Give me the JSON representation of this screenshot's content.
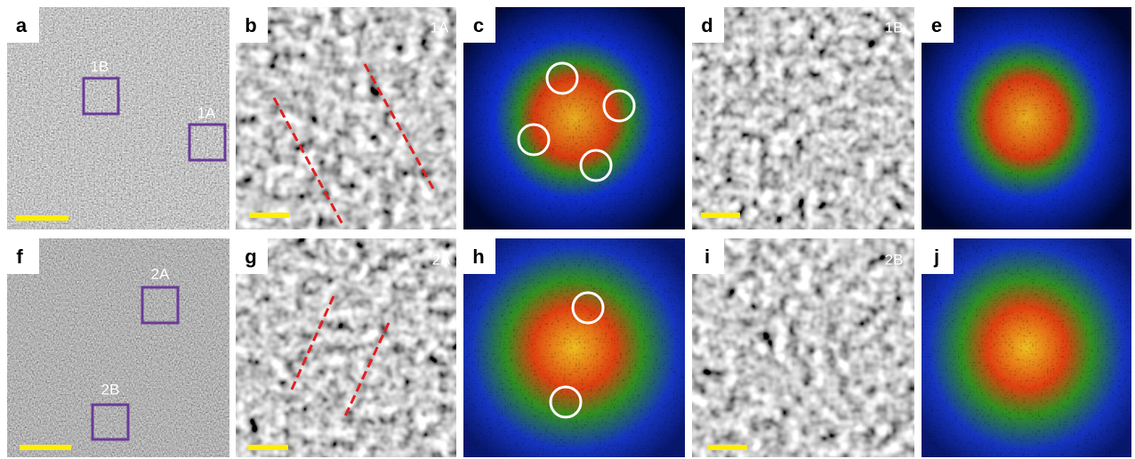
{
  "panels": [
    {
      "letter": "a",
      "regions": [
        "1B",
        "1A"
      ]
    },
    {
      "letter": "b",
      "label": "1A"
    },
    {
      "letter": "c"
    },
    {
      "letter": "d",
      "label": "1B"
    },
    {
      "letter": "e"
    },
    {
      "letter": "f",
      "regions": [
        "2A",
        "2B"
      ]
    },
    {
      "letter": "g",
      "label": "2A"
    },
    {
      "letter": "h"
    },
    {
      "letter": "i",
      "label": "2B"
    },
    {
      "letter": "j"
    }
  ]
}
